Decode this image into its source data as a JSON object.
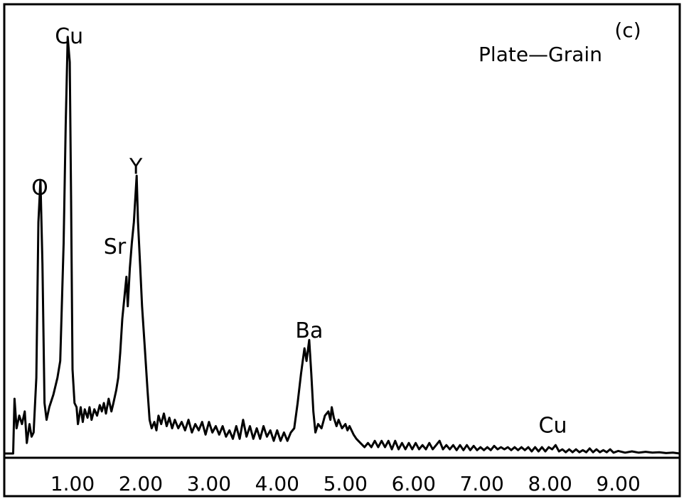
{
  "chart_data": {
    "type": "line",
    "panel_label": "(c)",
    "title": "Plate—Grain",
    "xlabel": "",
    "ylabel": "",
    "xlim": [
      0.0,
      9.9
    ],
    "ylim": [
      0,
      100
    ],
    "grid": false,
    "x_ticks": [
      1.0,
      2.0,
      3.0,
      4.0,
      5.0,
      6.0,
      7.0,
      8.0,
      9.0
    ],
    "x_tick_labels": [
      "1.00",
      "2.00",
      "3.00",
      "4.00",
      "5.00",
      "6.00",
      "7.00",
      "8.00",
      "9.00"
    ],
    "peak_labels": [
      {
        "text": "O",
        "x": 0.52,
        "y": 61.5
      },
      {
        "text": "Cu",
        "x": 0.95,
        "y": 97.5
      },
      {
        "text": "Y",
        "x": 1.93,
        "y": 66.5
      },
      {
        "text": "Sr",
        "x": 1.62,
        "y": 47.5
      },
      {
        "text": "Ba",
        "x": 4.47,
        "y": 27.5
      },
      {
        "text": "Cu",
        "x": 8.04,
        "y": 5.0
      }
    ],
    "series": [
      {
        "points": [
          [
            0.0,
            0.0
          ],
          [
            0.13,
            0.0
          ],
          [
            0.15,
            13.0
          ],
          [
            0.18,
            6.0
          ],
          [
            0.22,
            9.0
          ],
          [
            0.26,
            7.0
          ],
          [
            0.3,
            10.0
          ],
          [
            0.33,
            2.5
          ],
          [
            0.37,
            7.0
          ],
          [
            0.4,
            4.0
          ],
          [
            0.43,
            5.0
          ],
          [
            0.47,
            18.0
          ],
          [
            0.5,
            55.0
          ],
          [
            0.53,
            65.0
          ],
          [
            0.56,
            45.0
          ],
          [
            0.59,
            12.0
          ],
          [
            0.62,
            8.0
          ],
          [
            0.66,
            11.0
          ],
          [
            0.72,
            14.0
          ],
          [
            0.78,
            18.0
          ],
          [
            0.82,
            22.0
          ],
          [
            0.87,
            50.0
          ],
          [
            0.9,
            78.0
          ],
          [
            0.93,
            99.0
          ],
          [
            0.96,
            93.0
          ],
          [
            0.98,
            60.0
          ],
          [
            1.0,
            20.0
          ],
          [
            1.03,
            12.0
          ],
          [
            1.06,
            11.0
          ],
          [
            1.08,
            7.0
          ],
          [
            1.12,
            11.0
          ],
          [
            1.15,
            7.5
          ],
          [
            1.18,
            10.5
          ],
          [
            1.22,
            8.5
          ],
          [
            1.25,
            11.0
          ],
          [
            1.28,
            8.0
          ],
          [
            1.32,
            10.5
          ],
          [
            1.36,
            9.0
          ],
          [
            1.4,
            11.5
          ],
          [
            1.43,
            10.0
          ],
          [
            1.46,
            12.0
          ],
          [
            1.49,
            9.5
          ],
          [
            1.53,
            13.0
          ],
          [
            1.57,
            10.0
          ],
          [
            1.6,
            12.0
          ],
          [
            1.64,
            15.0
          ],
          [
            1.67,
            18.0
          ],
          [
            1.7,
            24.0
          ],
          [
            1.73,
            32.0
          ],
          [
            1.76,
            37.0
          ],
          [
            1.79,
            42.0
          ],
          [
            1.81,
            35.0
          ],
          [
            1.84,
            44.0
          ],
          [
            1.87,
            50.0
          ],
          [
            1.9,
            55.0
          ],
          [
            1.94,
            66.0
          ],
          [
            1.96,
            55.0
          ],
          [
            1.99,
            45.0
          ],
          [
            2.02,
            35.0
          ],
          [
            2.06,
            25.0
          ],
          [
            2.1,
            15.0
          ],
          [
            2.13,
            8.0
          ],
          [
            2.16,
            6.0
          ],
          [
            2.2,
            7.5
          ],
          [
            2.23,
            5.5
          ],
          [
            2.26,
            9.0
          ],
          [
            2.3,
            7.0
          ],
          [
            2.34,
            9.5
          ],
          [
            2.38,
            6.5
          ],
          [
            2.42,
            8.5
          ],
          [
            2.46,
            6.0
          ],
          [
            2.5,
            8.0
          ],
          [
            2.55,
            6.0
          ],
          [
            2.6,
            7.5
          ],
          [
            2.65,
            5.5
          ],
          [
            2.7,
            8.0
          ],
          [
            2.75,
            5.0
          ],
          [
            2.8,
            7.0
          ],
          [
            2.85,
            5.5
          ],
          [
            2.9,
            7.5
          ],
          [
            2.95,
            4.5
          ],
          [
            3.0,
            7.5
          ],
          [
            3.05,
            5.0
          ],
          [
            3.1,
            6.5
          ],
          [
            3.15,
            4.5
          ],
          [
            3.2,
            6.5
          ],
          [
            3.25,
            4.0
          ],
          [
            3.3,
            5.5
          ],
          [
            3.35,
            3.5
          ],
          [
            3.4,
            6.5
          ],
          [
            3.45,
            3.5
          ],
          [
            3.5,
            8.0
          ],
          [
            3.55,
            4.0
          ],
          [
            3.6,
            6.5
          ],
          [
            3.65,
            3.5
          ],
          [
            3.7,
            6.0
          ],
          [
            3.75,
            3.5
          ],
          [
            3.8,
            6.5
          ],
          [
            3.85,
            4.0
          ],
          [
            3.9,
            5.5
          ],
          [
            3.95,
            3.0
          ],
          [
            4.0,
            5.5
          ],
          [
            4.05,
            3.0
          ],
          [
            4.1,
            5.0
          ],
          [
            4.15,
            3.0
          ],
          [
            4.2,
            5.0
          ],
          [
            4.25,
            6.0
          ],
          [
            4.3,
            12.0
          ],
          [
            4.35,
            19.0
          ],
          [
            4.4,
            25.0
          ],
          [
            4.43,
            22.0
          ],
          [
            4.47,
            27.0
          ],
          [
            4.5,
            19.0
          ],
          [
            4.53,
            10.0
          ],
          [
            4.56,
            5.0
          ],
          [
            4.6,
            7.0
          ],
          [
            4.65,
            6.0
          ],
          [
            4.7,
            9.0
          ],
          [
            4.75,
            10.0
          ],
          [
            4.78,
            8.0
          ],
          [
            4.8,
            11.0
          ],
          [
            4.83,
            8.5
          ],
          [
            4.87,
            6.5
          ],
          [
            4.9,
            8.0
          ],
          [
            4.95,
            6.0
          ],
          [
            5.0,
            7.0
          ],
          [
            5.03,
            5.5
          ],
          [
            5.06,
            6.5
          ],
          [
            5.12,
            4.5
          ],
          [
            5.16,
            3.5
          ],
          [
            5.22,
            2.5
          ],
          [
            5.28,
            1.5
          ],
          [
            5.33,
            2.5
          ],
          [
            5.38,
            1.5
          ],
          [
            5.43,
            3.0
          ],
          [
            5.48,
            1.5
          ],
          [
            5.53,
            3.0
          ],
          [
            5.58,
            1.5
          ],
          [
            5.63,
            3.0
          ],
          [
            5.68,
            1.0
          ],
          [
            5.73,
            3.0
          ],
          [
            5.78,
            1.0
          ],
          [
            5.83,
            2.5
          ],
          [
            5.88,
            1.0
          ],
          [
            5.93,
            2.5
          ],
          [
            5.98,
            1.0
          ],
          [
            6.03,
            2.5
          ],
          [
            6.08,
            1.0
          ],
          [
            6.13,
            2.0
          ],
          [
            6.18,
            1.0
          ],
          [
            6.23,
            2.5
          ],
          [
            6.28,
            1.0
          ],
          [
            6.33,
            2.0
          ],
          [
            6.38,
            3.0
          ],
          [
            6.43,
            1.0
          ],
          [
            6.48,
            2.0
          ],
          [
            6.53,
            1.0
          ],
          [
            6.58,
            2.0
          ],
          [
            6.63,
            0.8
          ],
          [
            6.68,
            2.0
          ],
          [
            6.73,
            0.8
          ],
          [
            6.78,
            2.0
          ],
          [
            6.83,
            0.8
          ],
          [
            6.88,
            1.8
          ],
          [
            6.93,
            0.8
          ],
          [
            6.98,
            1.5
          ],
          [
            7.03,
            0.8
          ],
          [
            7.08,
            1.5
          ],
          [
            7.13,
            0.8
          ],
          [
            7.18,
            1.8
          ],
          [
            7.23,
            1.0
          ],
          [
            7.28,
            1.5
          ],
          [
            7.33,
            1.0
          ],
          [
            7.38,
            1.5
          ],
          [
            7.43,
            0.8
          ],
          [
            7.48,
            1.5
          ],
          [
            7.53,
            0.8
          ],
          [
            7.58,
            1.5
          ],
          [
            7.63,
            0.8
          ],
          [
            7.68,
            1.5
          ],
          [
            7.73,
            0.5
          ],
          [
            7.78,
            1.5
          ],
          [
            7.83,
            0.5
          ],
          [
            7.88,
            1.5
          ],
          [
            7.93,
            0.5
          ],
          [
            7.98,
            1.5
          ],
          [
            8.03,
            1.0
          ],
          [
            8.08,
            2.0
          ],
          [
            8.13,
            0.5
          ],
          [
            8.18,
            1.0
          ],
          [
            8.23,
            0.3
          ],
          [
            8.28,
            1.0
          ],
          [
            8.33,
            0.3
          ],
          [
            8.38,
            1.0
          ],
          [
            8.43,
            0.3
          ],
          [
            8.48,
            0.8
          ],
          [
            8.53,
            0.3
          ],
          [
            8.58,
            1.2
          ],
          [
            8.63,
            0.3
          ],
          [
            8.68,
            1.0
          ],
          [
            8.73,
            0.3
          ],
          [
            8.78,
            0.8
          ],
          [
            8.83,
            0.3
          ],
          [
            8.88,
            1.0
          ],
          [
            8.93,
            0.2
          ],
          [
            9.0,
            0.6
          ],
          [
            9.1,
            0.2
          ],
          [
            9.2,
            0.5
          ],
          [
            9.3,
            0.2
          ],
          [
            9.4,
            0.4
          ],
          [
            9.5,
            0.2
          ],
          [
            9.6,
            0.3
          ],
          [
            9.7,
            0.1
          ],
          [
            9.8,
            0.2
          ],
          [
            9.9,
            0.0
          ]
        ]
      }
    ]
  }
}
